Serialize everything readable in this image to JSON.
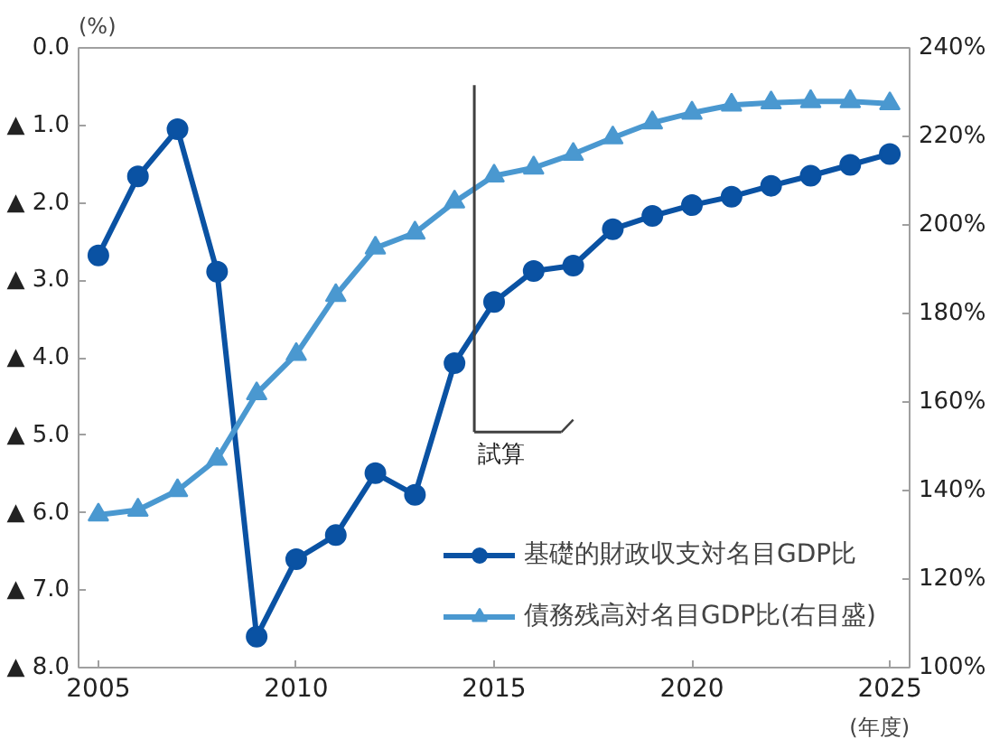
{
  "chart_data": {
    "type": "line",
    "xlabel": "(年度)",
    "ylabel": "(%)",
    "x": [
      2005,
      2006,
      2007,
      2008,
      2009,
      2010,
      2011,
      2012,
      2013,
      2014,
      2015,
      2016,
      2017,
      2018,
      2019,
      2020,
      2021,
      2022,
      2023,
      2024,
      2025
    ],
    "series": [
      {
        "name": "基礎的財政収支対名目GDP比",
        "color": "#0a52a3",
        "marker": "circle",
        "values": [
          2.68,
          1.66,
          1.05,
          2.89,
          7.6,
          6.6,
          6.29,
          5.49,
          5.77,
          4.07,
          3.28,
          2.88,
          2.81,
          2.34,
          2.17,
          2.03,
          1.92,
          1.78,
          1.65,
          1.51,
          1.37
        ]
      },
      {
        "name": "債務残高対名目GDP比(右目盛)",
        "color": "#4a98d0",
        "marker": "triangle",
        "axis": "y2",
        "values": [
          134.5,
          135.6,
          140,
          147.1,
          161.9,
          170.8,
          184.1,
          194.8,
          198.2,
          205.2,
          211.1,
          212.9,
          216,
          219.7,
          223.1,
          225.3,
          227.1,
          227.6,
          227.9,
          227.9,
          227.4
        ]
      }
    ],
    "xlim": [
      2004.5,
      2025.5
    ],
    "xticks": [
      2005,
      2010,
      2015,
      2020,
      2025
    ],
    "ylim": [
      8,
      0
    ],
    "yticks": [
      {
        "value": 0,
        "label": "0.0"
      },
      {
        "value": 1,
        "label": "▲ 1.0"
      },
      {
        "value": 2,
        "label": "▲ 2.0"
      },
      {
        "value": 3,
        "label": "▲ 3.0"
      },
      {
        "value": 4,
        "label": "▲ 4.0"
      },
      {
        "value": 5,
        "label": "▲ 5.0"
      },
      {
        "value": 6,
        "label": "▲ 6.0"
      },
      {
        "value": 7,
        "label": "▲ 7.0"
      },
      {
        "value": 8,
        "label": "▲ 8.0"
      }
    ],
    "y2lim": [
      100,
      240
    ],
    "y2ticks": [
      {
        "value": 100,
        "label": "100%"
      },
      {
        "value": 120,
        "label": "120%"
      },
      {
        "value": 140,
        "label": "140%"
      },
      {
        "value": 160,
        "label": "160%"
      },
      {
        "value": 180,
        "label": "180%"
      },
      {
        "value": 200,
        "label": "200%"
      },
      {
        "value": 220,
        "label": "220%"
      },
      {
        "value": 240,
        "label": "240%"
      }
    ],
    "ref_lines": [
      {
        "axis": "x",
        "value": 2014.5,
        "label": "試算",
        "color": "#404040"
      }
    ],
    "legend": "bottom right",
    "grid": false,
    "line_style": "solid"
  }
}
